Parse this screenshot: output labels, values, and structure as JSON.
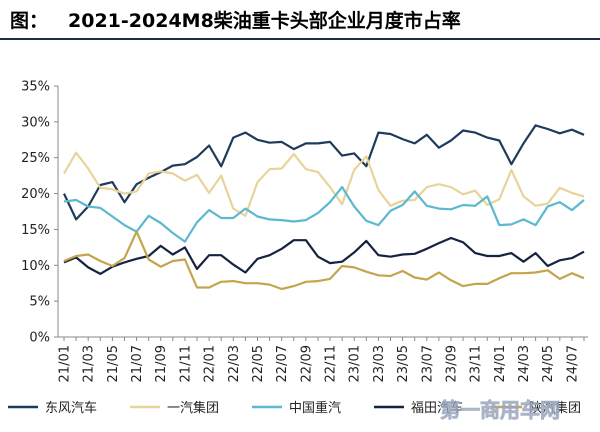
{
  "title": {
    "prefix": "图：",
    "main": "2021-2024M8柴油重卡头部企业月度市占率"
  },
  "chart_data": {
    "type": "line",
    "title": "2021-2024M8柴油重卡头部企业月度市占率",
    "xlabel": "",
    "ylabel": "",
    "ylim": [
      0,
      35
    ],
    "yticks": [
      "0%",
      "5%",
      "10%",
      "15%",
      "20%",
      "25%",
      "30%",
      "35%"
    ],
    "ytick_values": [
      0,
      5,
      10,
      15,
      20,
      25,
      30,
      35
    ],
    "x": [
      "21/01",
      "21/02",
      "21/03",
      "21/04",
      "21/05",
      "21/06",
      "21/07",
      "21/08",
      "21/09",
      "21/10",
      "21/11",
      "21/12",
      "22/01",
      "22/02",
      "22/03",
      "22/04",
      "22/05",
      "22/06",
      "22/07",
      "22/08",
      "22/09",
      "22/10",
      "22/11",
      "22/12",
      "23/01",
      "23/02",
      "23/03",
      "23/04",
      "23/05",
      "23/06",
      "23/07",
      "23/08",
      "23/09",
      "23/10",
      "23/11",
      "23/12",
      "24/01",
      "24/02",
      "24/03",
      "24/04",
      "24/05",
      "24/06",
      "24/07",
      "24/08"
    ],
    "xtick_labels": [
      "21/01",
      "21/03",
      "21/05",
      "21/07",
      "21/09",
      "21/11",
      "22/01",
      "22/03",
      "22/05",
      "22/07",
      "22/09",
      "22/11",
      "23/01",
      "23/03",
      "23/05",
      "23/07",
      "23/09",
      "23/11",
      "24/01",
      "24/03",
      "24/05",
      "24/07"
    ],
    "grid": false,
    "legend_position": "bottom",
    "series": [
      {
        "name": "东风汽车",
        "color": "#1f3b5c",
        "values": [
          20.0,
          16.4,
          18.2,
          21.2,
          21.6,
          18.8,
          21.3,
          22.2,
          23.0,
          23.9,
          24.1,
          25.1,
          26.7,
          23.8,
          27.8,
          28.5,
          27.5,
          27.1,
          27.2,
          26.2,
          27.0,
          27.0,
          27.2,
          25.3,
          25.6,
          23.8,
          28.5,
          28.3,
          27.6,
          27.0,
          28.2,
          26.4,
          27.4,
          28.8,
          28.5,
          27.8,
          27.4,
          24.1,
          27.0,
          29.5,
          29.0,
          28.4,
          28.9,
          28.2
        ]
      },
      {
        "name": "一汽集团",
        "color": "#e8d499",
        "values": [
          22.8,
          25.7,
          23.5,
          20.8,
          20.6,
          20.0,
          20.3,
          22.8,
          23.1,
          22.8,
          21.8,
          22.6,
          20.1,
          22.5,
          17.9,
          16.9,
          21.6,
          23.4,
          23.5,
          25.5,
          23.4,
          23.0,
          20.9,
          18.5,
          23.3,
          25.2,
          20.5,
          18.3,
          19.0,
          19.1,
          20.9,
          21.3,
          20.9,
          19.9,
          20.4,
          18.4,
          19.2,
          23.3,
          19.6,
          18.3,
          18.6,
          20.8,
          20.1,
          19.6
        ]
      },
      {
        "name": "中国重汽",
        "color": "#5cb8cf",
        "values": [
          18.9,
          19.1,
          18.2,
          18.0,
          16.8,
          15.6,
          14.7,
          16.9,
          15.9,
          14.5,
          13.3,
          16.0,
          17.7,
          16.6,
          16.6,
          17.9,
          16.8,
          16.4,
          16.3,
          16.1,
          16.3,
          17.3,
          18.8,
          20.9,
          18.2,
          16.2,
          15.6,
          17.6,
          18.4,
          20.3,
          18.3,
          17.9,
          17.8,
          18.4,
          18.3,
          19.6,
          15.6,
          15.7,
          16.4,
          15.6,
          18.2,
          18.8,
          17.7,
          19.1
        ]
      },
      {
        "name": "福田汽车",
        "color": "#15233f",
        "values": [
          10.4,
          11.1,
          9.7,
          8.8,
          9.8,
          10.4,
          10.9,
          11.3,
          12.7,
          11.5,
          12.5,
          9.5,
          11.4,
          11.4,
          10.1,
          9.0,
          10.9,
          11.4,
          12.3,
          13.5,
          13.5,
          11.2,
          10.3,
          10.5,
          11.8,
          13.4,
          11.4,
          11.2,
          11.5,
          11.6,
          12.3,
          13.1,
          13.8,
          13.2,
          11.7,
          11.3,
          11.3,
          11.7,
          10.5,
          11.7,
          9.9,
          10.7,
          11.0,
          11.9
        ]
      },
      {
        "name": "陕汽集团",
        "color": "#c4a44c",
        "values": [
          10.6,
          11.3,
          11.5,
          10.6,
          9.9,
          11.0,
          14.7,
          10.8,
          9.8,
          10.6,
          10.8,
          6.9,
          6.9,
          7.7,
          7.8,
          7.5,
          7.5,
          7.3,
          6.7,
          7.1,
          7.7,
          7.8,
          8.1,
          9.9,
          9.7,
          9.1,
          8.6,
          8.5,
          9.2,
          8.3,
          8.0,
          9.0,
          7.9,
          7.1,
          7.4,
          7.4,
          8.2,
          8.9,
          8.9,
          9.0,
          9.3,
          8.1,
          8.9,
          8.2
        ]
      }
    ]
  },
  "legend": {
    "items": [
      "东风汽车",
      "一汽集团",
      "中国重汽",
      "福田汽车",
      "陕汽集团"
    ]
  },
  "watermark": {
    "text": "第一商用车网"
  }
}
